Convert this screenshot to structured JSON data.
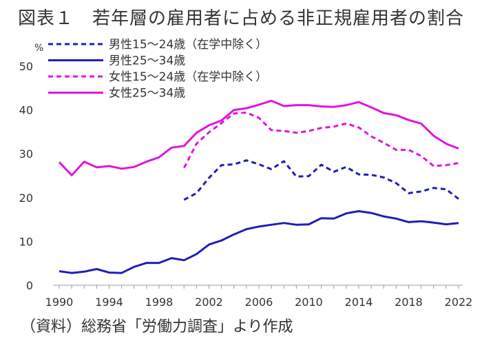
{
  "title": "図表１　若年層の雇用者に占める非正規雇用者の割合",
  "source": "（資料）総務省「労働力調査」より作成",
  "unit": "%",
  "chart_data": {
    "type": "line",
    "title": "図表１　若年層の雇用者に占める非正規雇用者の割合",
    "ylabel": "%",
    "xlabel": "",
    "xlim": [
      1990,
      2022
    ],
    "ylim": [
      0,
      50
    ],
    "x_ticks": [
      1990,
      1994,
      1998,
      2002,
      2006,
      2010,
      2014,
      2018,
      2022
    ],
    "y_ticks": [
      0,
      10,
      20,
      30,
      40,
      50
    ],
    "grid": false,
    "legend": "top-left",
    "series": [
      {
        "name": "男性15～24歳（在学中除く）",
        "color": "#1f1fb4",
        "dash": "dashed",
        "x": [
          2000,
          2001,
          2002,
          2003,
          2004,
          2005,
          2006,
          2007,
          2008,
          2009,
          2010,
          2011,
          2012,
          2013,
          2014,
          2015,
          2016,
          2017,
          2018,
          2019,
          2020,
          2021,
          2022
        ],
        "values": [
          19.5,
          21.0,
          24.5,
          27.4,
          27.6,
          28.5,
          27.6,
          26.5,
          28.3,
          24.8,
          24.9,
          27.5,
          25.9,
          27.0,
          25.3,
          25.2,
          24.6,
          23.3,
          21.0,
          21.4,
          22.2,
          21.9,
          19.7
        ]
      },
      {
        "name": "男性25～34歳",
        "color": "#1f1fb4",
        "dash": "solid",
        "x": [
          1990,
          1991,
          1992,
          1993,
          1994,
          1995,
          1996,
          1997,
          1998,
          1999,
          2000,
          2001,
          2002,
          2003,
          2004,
          2005,
          2006,
          2007,
          2008,
          2009,
          2010,
          2011,
          2012,
          2013,
          2014,
          2015,
          2016,
          2017,
          2018,
          2019,
          2020,
          2021,
          2022
        ],
        "values": [
          3.2,
          2.8,
          3.1,
          3.7,
          2.9,
          2.8,
          4.2,
          5.1,
          5.1,
          6.2,
          5.7,
          7.1,
          9.3,
          10.2,
          11.6,
          12.8,
          13.4,
          13.8,
          14.2,
          13.8,
          13.9,
          15.3,
          15.2,
          16.4,
          16.9,
          16.5,
          15.7,
          15.2,
          14.4,
          14.6,
          14.3,
          13.9,
          14.2
        ]
      },
      {
        "name": "女性15～24歳（在学中除く）",
        "color": "#e014e0",
        "dash": "dashed",
        "x": [
          2000,
          2001,
          2002,
          2003,
          2004,
          2005,
          2006,
          2007,
          2008,
          2009,
          2010,
          2011,
          2012,
          2013,
          2014,
          2015,
          2016,
          2017,
          2018,
          2019,
          2020,
          2021,
          2022
        ],
        "values": [
          26.8,
          32.3,
          34.9,
          37.0,
          39.2,
          39.4,
          38.2,
          35.4,
          35.2,
          34.8,
          35.2,
          35.9,
          36.2,
          36.9,
          36.0,
          34.0,
          32.5,
          30.9,
          30.9,
          29.5,
          27.2,
          27.4,
          27.9
        ]
      },
      {
        "name": "女性25～34歳",
        "color": "#e014e0",
        "dash": "solid",
        "x": [
          1990,
          1991,
          1992,
          1993,
          1994,
          1995,
          1996,
          1997,
          1998,
          1999,
          2000,
          2001,
          2002,
          2003,
          2004,
          2005,
          2006,
          2007,
          2008,
          2009,
          2010,
          2011,
          2012,
          2013,
          2014,
          2015,
          2016,
          2017,
          2018,
          2019,
          2020,
          2021,
          2022
        ],
        "values": [
          28.1,
          25.1,
          28.2,
          26.9,
          27.2,
          26.6,
          27.0,
          28.2,
          29.2,
          31.4,
          31.8,
          34.8,
          36.5,
          37.6,
          40.0,
          40.4,
          41.2,
          42.1,
          40.9,
          41.1,
          41.1,
          40.8,
          40.7,
          41.1,
          41.8,
          40.6,
          39.3,
          38.8,
          37.7,
          36.9,
          34.1,
          32.3,
          31.2
        ]
      }
    ]
  }
}
